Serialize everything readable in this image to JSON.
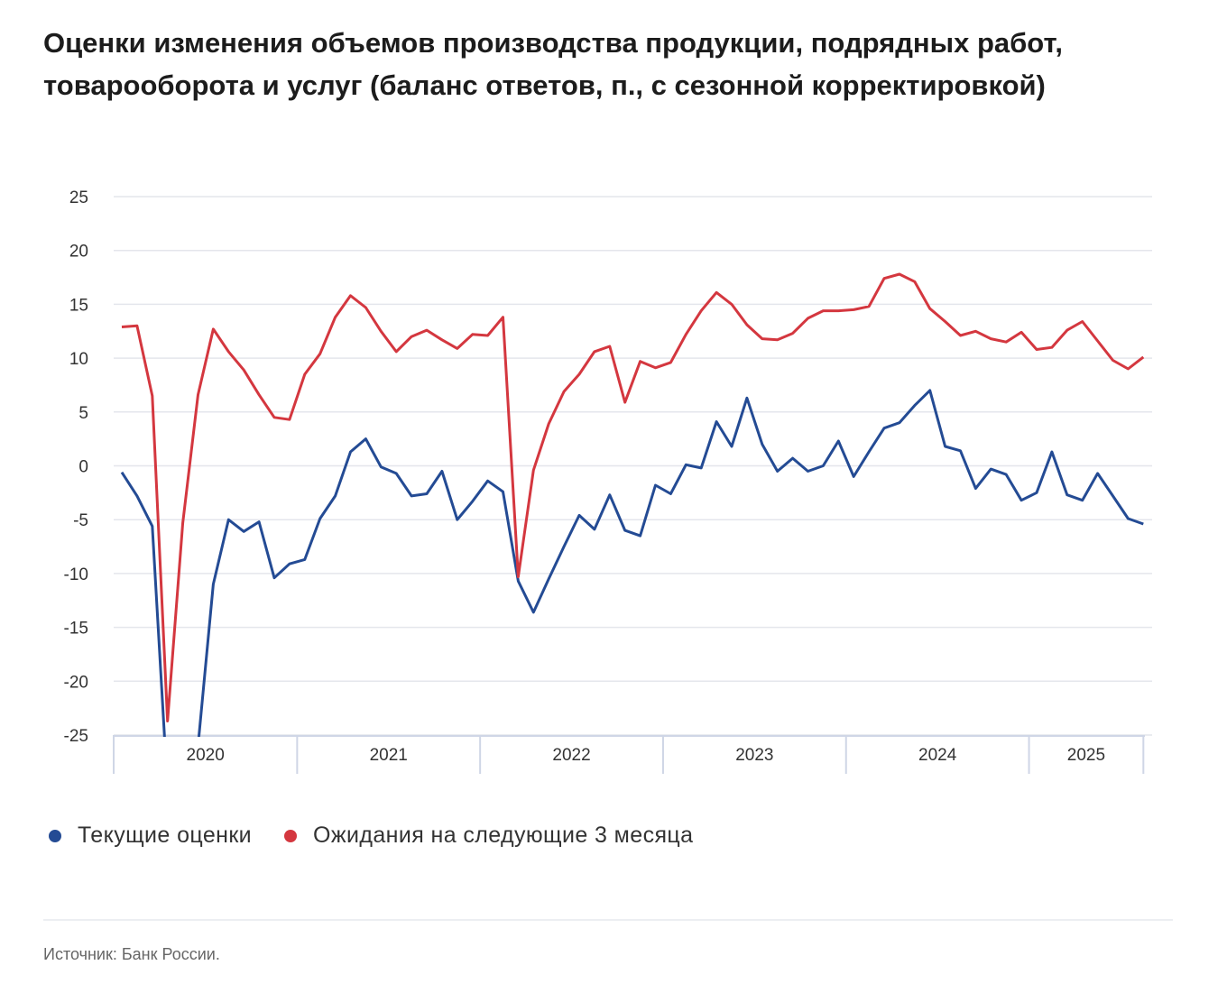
{
  "title": "Оценки изменения объемов производства продукции, подрядных работ, товарооборота и услуг (баланс ответов, п., с сезонной корректировкой)",
  "source": "Источник: Банк России.",
  "chart_data": {
    "type": "line",
    "title": "Оценки изменения объемов производства продукции, подрядных работ, товарооборота и услуг (баланс ответов, п., с сезонной корректировкой)",
    "xlabel": "",
    "ylabel": "",
    "ylim": [
      -25,
      25
    ],
    "yticks": [
      25,
      20,
      15,
      10,
      5,
      0,
      -5,
      -10,
      -15,
      -20,
      -25
    ],
    "x_start": "2020-01",
    "x_frequency": "monthly",
    "year_labels": [
      {
        "label": "2020",
        "months": 12
      },
      {
        "label": "2021",
        "months": 12
      },
      {
        "label": "2022",
        "months": 12
      },
      {
        "label": "2023",
        "months": 12
      },
      {
        "label": "2024",
        "months": 12
      },
      {
        "label": "2025",
        "months": 8
      }
    ],
    "grid": true,
    "legend_position": "bottom-left",
    "series": [
      {
        "name": "Текущие оценки",
        "color": "#244b94",
        "values": [
          -0.6,
          -2.8,
          -5.6,
          -30,
          -30,
          -26,
          -11.0,
          -5.0,
          -6.1,
          -5.2,
          -10.4,
          -9.1,
          -8.7,
          -4.9,
          -2.8,
          1.3,
          2.5,
          -0.1,
          -0.7,
          -2.8,
          -2.6,
          -0.5,
          -5.0,
          -3.3,
          -1.4,
          -2.4,
          -10.7,
          -13.6,
          -10.5,
          -7.5,
          -4.6,
          -5.9,
          -2.7,
          -6.0,
          -6.5,
          -1.8,
          -2.6,
          0.1,
          -0.2,
          4.1,
          1.8,
          6.3,
          2.0,
          -0.5,
          0.7,
          -0.5,
          0.0,
          2.3,
          -1.0,
          1.3,
          3.5,
          4.0,
          5.6,
          7.0,
          1.8,
          1.4,
          -2.1,
          -0.3,
          -0.8,
          -3.2,
          -2.5,
          1.3,
          -2.7,
          -3.2,
          -0.7,
          -2.8,
          -4.9,
          -5.4
        ]
      },
      {
        "name": "Ожидания на следующие 3 месяца",
        "color": "#d4373f",
        "values": [
          12.9,
          13.0,
          6.5,
          -23.7,
          -5.3,
          6.6,
          12.7,
          10.6,
          8.9,
          6.6,
          4.5,
          4.3,
          8.5,
          10.4,
          13.8,
          15.8,
          14.7,
          12.5,
          10.6,
          12.0,
          12.6,
          11.7,
          10.9,
          12.2,
          12.1,
          13.8,
          -10.3,
          -0.4,
          3.9,
          6.9,
          8.5,
          10.6,
          11.1,
          5.9,
          9.7,
          9.1,
          9.6,
          12.2,
          14.4,
          16.1,
          15.0,
          13.1,
          11.8,
          11.7,
          12.3,
          13.7,
          14.4,
          14.4,
          14.5,
          14.8,
          17.4,
          17.8,
          17.1,
          14.6,
          13.4,
          12.1,
          12.5,
          11.8,
          11.5,
          12.4,
          10.8,
          11.0,
          12.6,
          13.4,
          11.6,
          9.8,
          9.0,
          10.1
        ]
      }
    ]
  }
}
